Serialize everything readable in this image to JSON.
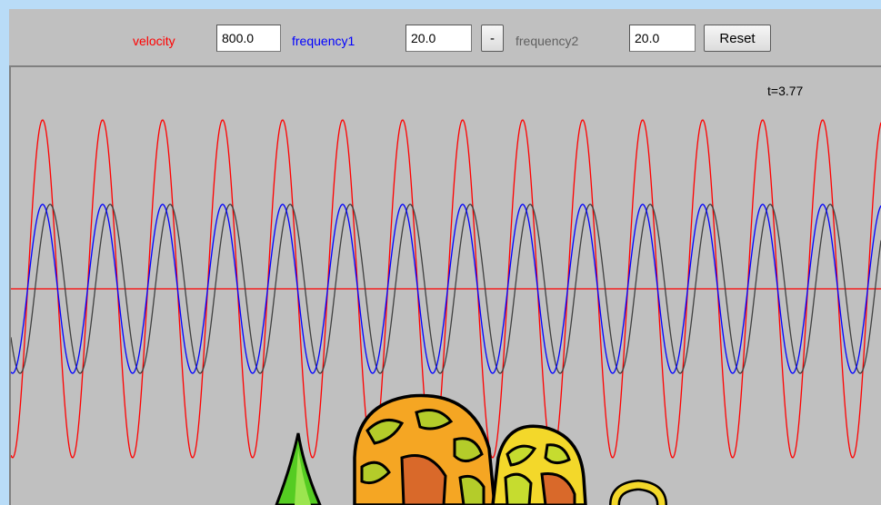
{
  "controls": {
    "velocity_label": "velocity",
    "velocity_value": "800.0",
    "frequency1_label": "frequency1",
    "frequency1_value": "20.0",
    "minus_label": "-",
    "frequency2_label": "frequency2",
    "frequency2_value": "20.0",
    "reset_label": "Reset"
  },
  "time_readout": "t=3.77",
  "colors": {
    "velocity": "#ff0000",
    "frequency1": "#0000ff",
    "frequency2": "#606060",
    "background": "#c0c0c0",
    "page": "#b9dcf7"
  },
  "waves": [
    {
      "name": "sum-wave",
      "color": "#ff0000",
      "amplitude": 2,
      "periods": 14.5,
      "phase_deg": 260
    },
    {
      "name": "wave1",
      "color": "#0000ff",
      "amplitude": 1,
      "periods": 14.5,
      "phase_deg": 260
    },
    {
      "name": "wave2",
      "color": "#404040",
      "amplitude": 1,
      "periods": 14.5,
      "phase_deg": 215
    }
  ]
}
